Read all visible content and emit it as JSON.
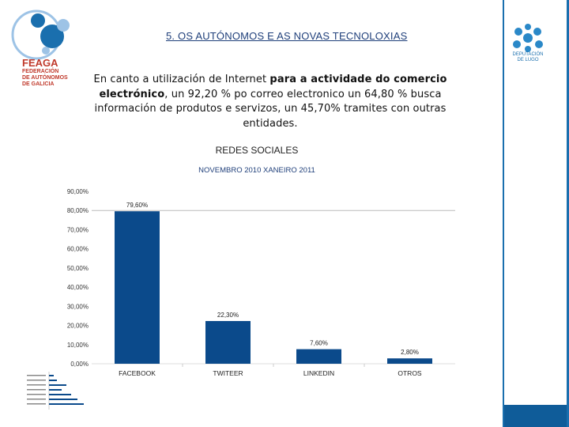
{
  "header": {
    "title": "5. OS AUTÓNOMOS E AS NOVAS TECNOLOXIAS",
    "logo_left": {
      "name": "FEAGA",
      "subtitle": [
        "FEDERACIÓN",
        "DE AUTÓNOMOS",
        "DE GALICIA"
      ]
    },
    "logo_right": {
      "lines": [
        "DEPUTACIÓN",
        "DE LUGO"
      ]
    }
  },
  "body_text": {
    "plain_1": "En canto a utilización de Internet ",
    "bold": "para a actividade do comercio electrónico",
    "plain_2": ", un 92,20 %  po correo electronico un 64,80 % busca información de produtos e servizos, un  45,70% tramites con outras entidades."
  },
  "colors": {
    "bar": "#0b4a8b",
    "title": "#1f3f7a",
    "accent": "#1a6fae",
    "logo_red": "#c0392b"
  },
  "chart_data": {
    "type": "bar",
    "title": "REDES SOCIALES",
    "subtitle": "NOVEMBRO 2010   XANEIRO 2011",
    "categories": [
      "FACEBOOK",
      "TWITEER",
      "LINKEDIN",
      "OTROS"
    ],
    "values": [
      79.6,
      22.3,
      7.6,
      2.8
    ],
    "value_labels": [
      "79,60%",
      "22,30%",
      "7,60%",
      "2,80%"
    ],
    "yticks": [
      0,
      10,
      20,
      30,
      40,
      50,
      60,
      70,
      80,
      90
    ],
    "ytick_labels": [
      "0,00%",
      "10,00%",
      "20,00%",
      "30,00%",
      "40,00%",
      "50,00%",
      "60,00%",
      "70,00%",
      "80,00%",
      "90,00%"
    ],
    "ylim": [
      0,
      90
    ],
    "xlabel": "",
    "ylabel": ""
  }
}
